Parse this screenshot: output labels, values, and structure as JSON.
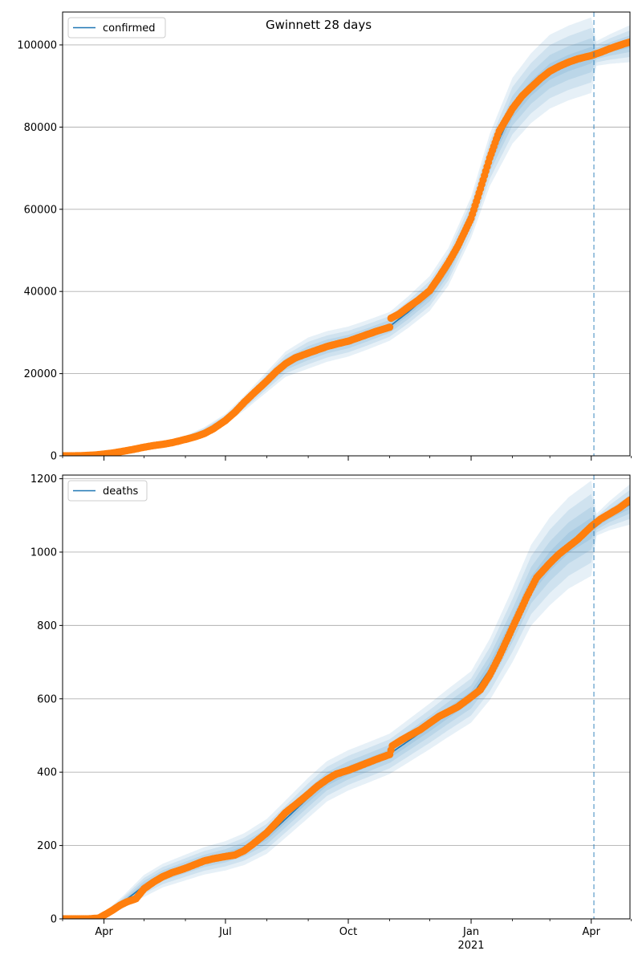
{
  "figure": {
    "title": "Gwinnett 28 days"
  },
  "x_axis": {
    "date_range": [
      "2020-03-01",
      "2021-04-30"
    ],
    "major_ticks": [
      {
        "date": "2020-04-01",
        "label": "Apr",
        "sublabel": ""
      },
      {
        "date": "2020-07-01",
        "label": "Jul",
        "sublabel": ""
      },
      {
        "date": "2020-10-01",
        "label": "Oct",
        "sublabel": ""
      },
      {
        "date": "2021-01-01",
        "label": "Jan",
        "sublabel": "2021"
      },
      {
        "date": "2021-04-01",
        "label": "Apr",
        "sublabel": ""
      }
    ],
    "minor_tick_dates": [
      "2020-03-01",
      "2020-05-01",
      "2020-06-01",
      "2020-08-01",
      "2020-09-01",
      "2020-11-01",
      "2020-12-01",
      "2021-02-01",
      "2021-03-01",
      "2021-05-01"
    ],
    "forecast_start_date": "2021-04-03"
  },
  "colors": {
    "model_line": "#1f77b4",
    "band": "#1f77b4",
    "observed": "#ff7f0e",
    "grid": "#b0b0b0",
    "forecast_line": "#1f77b4"
  },
  "chart_data": [
    {
      "type": "line",
      "legend": "confirmed",
      "legend_position": "top-left",
      "grid": true,
      "ylim": [
        0,
        108000
      ],
      "yticks": [
        0,
        20000,
        40000,
        60000,
        80000,
        100000
      ],
      "model_line": [
        [
          "2020-03-01",
          0
        ],
        [
          "2020-03-15",
          100
        ],
        [
          "2020-04-01",
          400
        ],
        [
          "2020-04-15",
          1100
        ],
        [
          "2020-05-01",
          2100
        ],
        [
          "2020-05-15",
          3000
        ],
        [
          "2020-06-01",
          4200
        ],
        [
          "2020-06-15",
          6000
        ],
        [
          "2020-07-01",
          9000
        ],
        [
          "2020-07-15",
          12800
        ],
        [
          "2020-08-01",
          18000
        ],
        [
          "2020-08-15",
          22300
        ],
        [
          "2020-09-01",
          25000
        ],
        [
          "2020-09-15",
          26600
        ],
        [
          "2020-10-01",
          27800
        ],
        [
          "2020-10-15",
          29400
        ],
        [
          "2020-11-01",
          31500
        ],
        [
          "2020-11-15",
          35000
        ],
        [
          "2020-12-01",
          39500
        ],
        [
          "2020-12-15",
          46000
        ],
        [
          "2021-01-01",
          58000
        ],
        [
          "2021-01-15",
          72000
        ],
        [
          "2021-02-01",
          84000
        ],
        [
          "2021-02-15",
          89500
        ],
        [
          "2021-03-01",
          93500
        ],
        [
          "2021-03-15",
          95600
        ],
        [
          "2021-04-01",
          97500
        ],
        [
          "2021-04-15",
          99000
        ],
        [
          "2021-04-30",
          100300
        ]
      ],
      "band_halfwidths": [
        [
          "2020-03-01",
          0
        ],
        [
          "2020-05-01",
          200
        ],
        [
          "2020-07-01",
          1200
        ],
        [
          "2020-09-01",
          3800
        ],
        [
          "2020-11-01",
          3500
        ],
        [
          "2021-01-01",
          5000
        ],
        [
          "2021-02-01",
          8000
        ],
        [
          "2021-03-01",
          9000
        ],
        [
          "2021-04-01",
          9200
        ],
        [
          "2021-04-05",
          3000
        ],
        [
          "2021-04-30",
          4500
        ]
      ],
      "observed_points": [
        [
          "2020-03-01",
          0
        ],
        [
          "2020-03-09",
          0
        ],
        [
          "2020-03-17",
          60
        ],
        [
          "2020-03-25",
          200
        ],
        [
          "2020-04-01",
          420
        ],
        [
          "2020-04-08",
          700
        ],
        [
          "2020-04-15",
          1100
        ],
        [
          "2020-04-22",
          1500
        ],
        [
          "2020-05-01",
          2100
        ],
        [
          "2020-05-08",
          2500
        ],
        [
          "2020-05-15",
          2800
        ],
        [
          "2020-05-22",
          3200
        ],
        [
          "2020-06-01",
          4000
        ],
        [
          "2020-06-08",
          4600
        ],
        [
          "2020-06-15",
          5400
        ],
        [
          "2020-06-22",
          6600
        ],
        [
          "2020-07-01",
          8600
        ],
        [
          "2020-07-08",
          10600
        ],
        [
          "2020-07-15",
          13000
        ],
        [
          "2020-07-22",
          15200
        ],
        [
          "2020-08-01",
          18200
        ],
        [
          "2020-08-08",
          20500
        ],
        [
          "2020-08-15",
          22400
        ],
        [
          "2020-08-22",
          23800
        ],
        [
          "2020-09-01",
          25000
        ],
        [
          "2020-09-08",
          25800
        ],
        [
          "2020-09-15",
          26600
        ],
        [
          "2020-09-22",
          27200
        ],
        [
          "2020-10-01",
          27900
        ],
        [
          "2020-10-08",
          28700
        ],
        [
          "2020-10-15",
          29500
        ],
        [
          "2020-10-22",
          30300
        ],
        [
          "2020-11-01",
          31300
        ],
        [
          "2020-11-02",
          33500
        ],
        [
          "2020-11-08",
          34500
        ],
        [
          "2020-11-15",
          36200
        ],
        [
          "2020-11-22",
          37800
        ],
        [
          "2020-12-01",
          40200
        ],
        [
          "2020-12-08",
          43500
        ],
        [
          "2020-12-15",
          47000
        ],
        [
          "2020-12-22",
          51000
        ],
        [
          "2021-01-01",
          57800
        ],
        [
          "2021-01-08",
          65000
        ],
        [
          "2021-01-15",
          72500
        ],
        [
          "2021-01-22",
          79000
        ],
        [
          "2021-02-01",
          84500
        ],
        [
          "2021-02-08",
          87500
        ],
        [
          "2021-02-15",
          89700
        ],
        [
          "2021-02-22",
          91800
        ],
        [
          "2021-03-01",
          93600
        ],
        [
          "2021-03-08",
          94800
        ],
        [
          "2021-03-15",
          95800
        ],
        [
          "2021-03-22",
          96600
        ],
        [
          "2021-04-01",
          97400
        ],
        [
          "2021-04-08",
          98200
        ],
        [
          "2021-04-15",
          99100
        ],
        [
          "2021-04-22",
          99900
        ],
        [
          "2021-04-30",
          100700
        ]
      ]
    },
    {
      "type": "line",
      "legend": "deaths",
      "legend_position": "top-left",
      "grid": true,
      "ylim": [
        0,
        1210
      ],
      "yticks": [
        0,
        200,
        400,
        600,
        800,
        1000,
        1200
      ],
      "model_line": [
        [
          "2020-03-01",
          0
        ],
        [
          "2020-03-25",
          2
        ],
        [
          "2020-04-01",
          12
        ],
        [
          "2020-04-15",
          45
        ],
        [
          "2020-05-01",
          90
        ],
        [
          "2020-05-15",
          118
        ],
        [
          "2020-06-01",
          140
        ],
        [
          "2020-06-15",
          158
        ],
        [
          "2020-07-01",
          172
        ],
        [
          "2020-07-15",
          190
        ],
        [
          "2020-08-01",
          225
        ],
        [
          "2020-08-15",
          272
        ],
        [
          "2020-09-01",
          330
        ],
        [
          "2020-09-15",
          375
        ],
        [
          "2020-10-01",
          405
        ],
        [
          "2020-10-15",
          425
        ],
        [
          "2020-11-01",
          450
        ],
        [
          "2020-11-15",
          485
        ],
        [
          "2020-12-01",
          525
        ],
        [
          "2020-12-15",
          562
        ],
        [
          "2021-01-01",
          605
        ],
        [
          "2021-01-15",
          680
        ],
        [
          "2021-02-01",
          800
        ],
        [
          "2021-02-15",
          910
        ],
        [
          "2021-03-01",
          975
        ],
        [
          "2021-03-15",
          1025
        ],
        [
          "2021-04-01",
          1065
        ],
        [
          "2021-04-15",
          1100
        ],
        [
          "2021-04-30",
          1130
        ]
      ],
      "band_halfwidths": [
        [
          "2020-03-01",
          0
        ],
        [
          "2020-04-01",
          5
        ],
        [
          "2020-05-01",
          30
        ],
        [
          "2020-07-01",
          40
        ],
        [
          "2020-09-01",
          55
        ],
        [
          "2020-11-01",
          55
        ],
        [
          "2021-01-01",
          70
        ],
        [
          "2021-02-01",
          100
        ],
        [
          "2021-03-01",
          120
        ],
        [
          "2021-04-01",
          130
        ],
        [
          "2021-04-05",
          30
        ],
        [
          "2021-04-30",
          55
        ]
      ],
      "observed_points": [
        [
          "2020-03-01",
          0
        ],
        [
          "2020-03-10",
          0
        ],
        [
          "2020-03-20",
          0
        ],
        [
          "2020-03-28",
          2
        ],
        [
          "2020-04-03",
          14
        ],
        [
          "2020-04-08",
          25
        ],
        [
          "2020-04-13",
          37
        ],
        [
          "2020-04-18",
          46
        ],
        [
          "2020-04-25",
          55
        ],
        [
          "2020-05-01",
          82
        ],
        [
          "2020-05-08",
          100
        ],
        [
          "2020-05-15",
          115
        ],
        [
          "2020-05-22",
          126
        ],
        [
          "2020-06-01",
          138
        ],
        [
          "2020-06-08",
          148
        ],
        [
          "2020-06-15",
          158
        ],
        [
          "2020-06-22",
          164
        ],
        [
          "2020-07-01",
          170
        ],
        [
          "2020-07-08",
          174
        ],
        [
          "2020-07-15",
          186
        ],
        [
          "2020-07-22",
          205
        ],
        [
          "2020-08-01",
          235
        ],
        [
          "2020-08-08",
          262
        ],
        [
          "2020-08-15",
          290
        ],
        [
          "2020-08-22",
          310
        ],
        [
          "2020-09-01",
          340
        ],
        [
          "2020-09-08",
          362
        ],
        [
          "2020-09-15",
          380
        ],
        [
          "2020-09-22",
          395
        ],
        [
          "2020-10-01",
          405
        ],
        [
          "2020-10-08",
          415
        ],
        [
          "2020-10-15",
          425
        ],
        [
          "2020-10-22",
          435
        ],
        [
          "2020-11-01",
          448
        ],
        [
          "2020-11-03",
          472
        ],
        [
          "2020-11-10",
          488
        ],
        [
          "2020-11-17",
          502
        ],
        [
          "2020-11-24",
          516
        ],
        [
          "2020-12-01",
          534
        ],
        [
          "2020-12-08",
          552
        ],
        [
          "2020-12-15",
          565
        ],
        [
          "2020-12-22",
          578
        ],
        [
          "2021-01-01",
          605
        ],
        [
          "2021-01-08",
          625
        ],
        [
          "2021-01-15",
          665
        ],
        [
          "2021-01-22",
          715
        ],
        [
          "2021-01-29",
          770
        ],
        [
          "2021-02-05",
          825
        ],
        [
          "2021-02-12",
          880
        ],
        [
          "2021-02-19",
          930
        ],
        [
          "2021-03-01",
          970
        ],
        [
          "2021-03-08",
          995
        ],
        [
          "2021-03-15",
          1015
        ],
        [
          "2021-03-22",
          1035
        ],
        [
          "2021-04-01",
          1070
        ],
        [
          "2021-04-08",
          1090
        ],
        [
          "2021-04-15",
          1105
        ],
        [
          "2021-04-22",
          1120
        ],
        [
          "2021-04-30",
          1142
        ]
      ]
    }
  ]
}
